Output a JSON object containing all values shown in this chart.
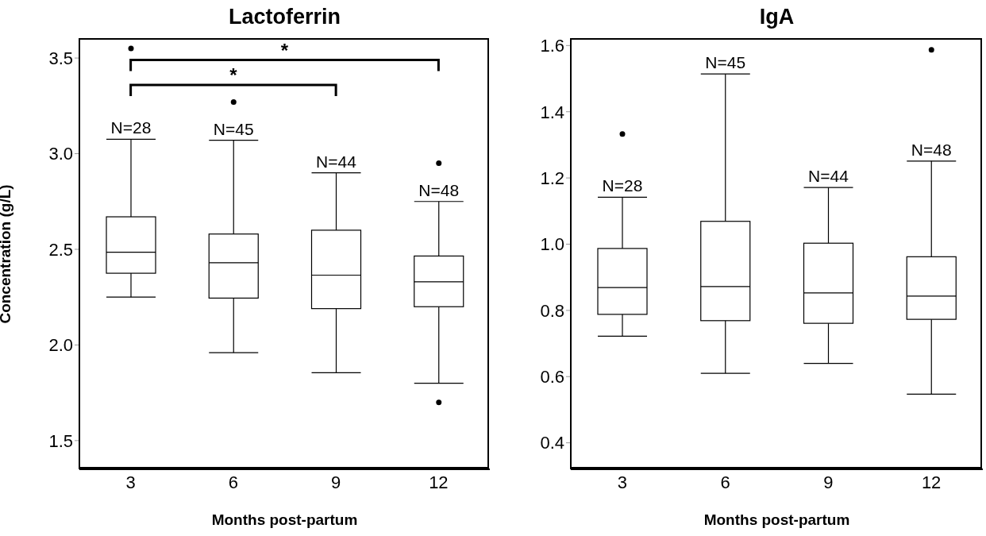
{
  "chart_data": [
    {
      "type": "box",
      "title": "Lactoferrin",
      "xlabel": "Months post-partum",
      "ylabel": "Concentration (g/L)",
      "categories": [
        "3",
        "6",
        "9",
        "12"
      ],
      "boxes": [
        {
          "low": 2.25,
          "q1": 2.375,
          "median": 2.485,
          "q3": 2.67,
          "high": 3.075,
          "outliers": [
            3.55
          ]
        },
        {
          "low": 1.96,
          "q1": 2.245,
          "median": 2.43,
          "q3": 2.58,
          "high": 3.07,
          "outliers": [
            3.27
          ]
        },
        {
          "low": 1.855,
          "q1": 2.19,
          "median": 2.365,
          "q3": 2.6,
          "high": 2.9
        },
        {
          "low": 1.8,
          "q1": 2.2,
          "median": 2.33,
          "q3": 2.465,
          "high": 2.75,
          "outliers": [
            2.95,
            1.7
          ]
        }
      ],
      "ylim": [
        1.35,
        3.6
      ],
      "yticks": [
        1.5,
        {
          "value": 2,
          "label": "2.0"
        },
        2.5,
        {
          "value": 3,
          "label": "3.0"
        },
        3.5
      ],
      "annotations": [
        "*",
        "*",
        {
          "text": "N=28",
          "x": "3",
          "y": 3.075
        },
        {
          "text": "N=45",
          "x": "6",
          "y": 3.07
        },
        {
          "text": "N=44",
          "x": "9",
          "y": 2.9
        },
        {
          "text": "N=48",
          "x": "12",
          "y": 2.75
        }
      ]
    },
    {
      "type": "box",
      "title": "IgA",
      "xlabel": "Months post-partum",
      "categories": [
        "3",
        "6",
        "9",
        "12"
      ],
      "boxes": [
        {
          "low": 0.722,
          "q1": 0.788,
          "median": 0.869,
          "q3": 0.987,
          "high": 1.142,
          "outliers": [
            1.333
          ]
        },
        {
          "low": 0.61,
          "q1": 0.769,
          "median": 0.872,
          "q3": 1.069,
          "high": 1.514
        },
        {
          "low": 0.64,
          "q1": 0.761,
          "median": 0.853,
          "q3": 1.003,
          "high": 1.171
        },
        {
          "low": 0.547,
          "q1": 0.773,
          "median": 0.843,
          "q3": 0.962,
          "high": 1.251,
          "outliers": [
            1.587
          ]
        }
      ],
      "ylim": [
        0.32,
        1.62
      ],
      "yticks": [
        0.4,
        0.6,
        0.8,
        {
          "value": 1,
          "label": "1.0"
        },
        1.2,
        1.4,
        1.6
      ],
      "annotations": [
        {
          "text": "N=28",
          "x": "3",
          "y": 1.142
        },
        {
          "text": "N=45",
          "x": "6",
          "y": 1.514
        },
        {
          "text": "N=44",
          "x": "9",
          "y": 1.171
        },
        {
          "text": "N=48",
          "x": "12",
          "y": 1.251
        }
      ]
    }
  ]
}
